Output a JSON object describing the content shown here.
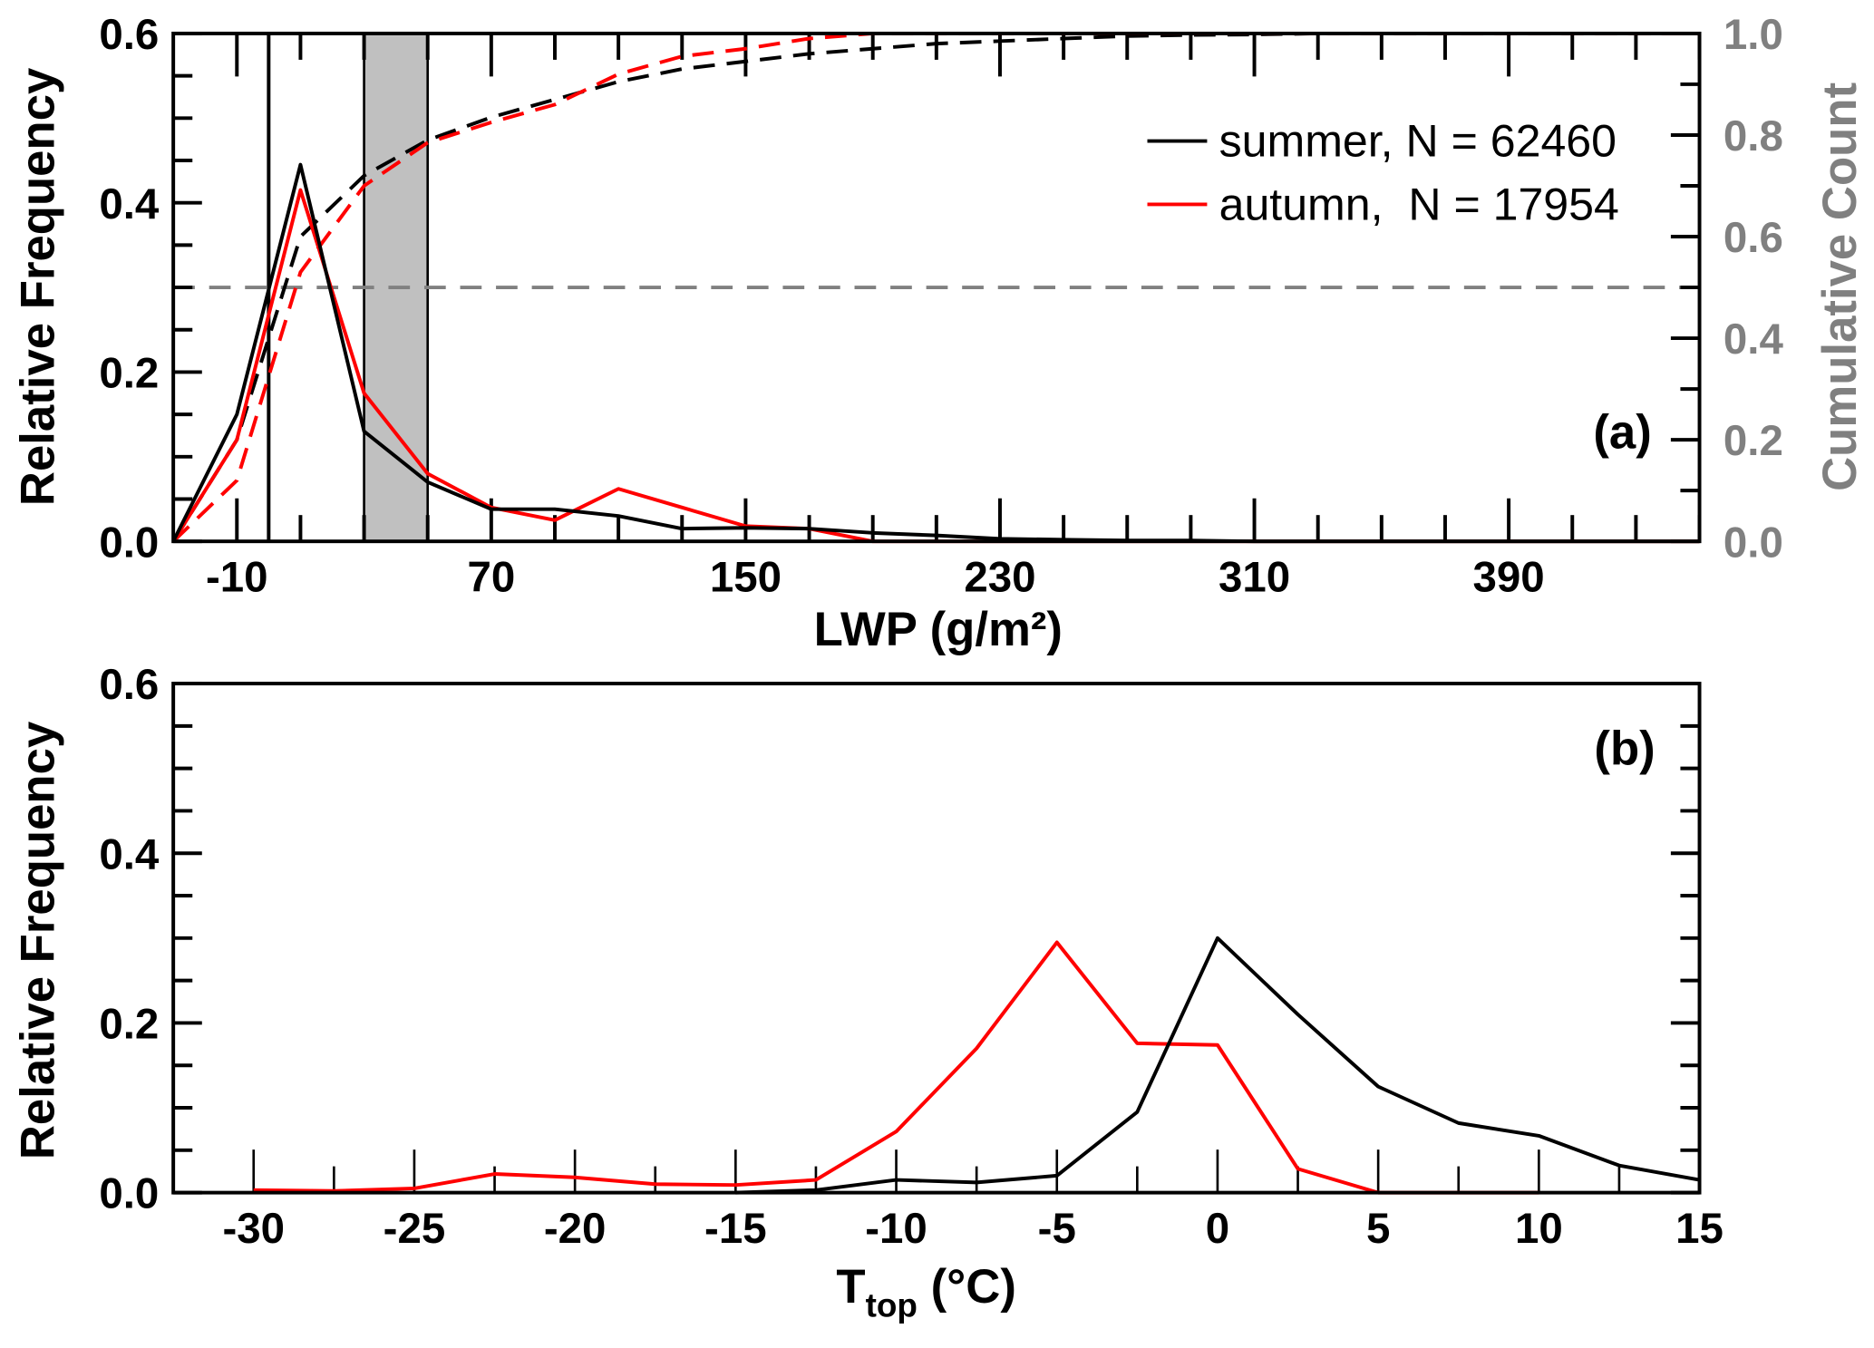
{
  "chart_data": [
    {
      "type": "line",
      "panel_label": "(a)",
      "xlabel": "LWP (g/m²)",
      "ylabel": "Relative Frequency",
      "y2label": "Cumulative Count",
      "xlim": [
        -30,
        450
      ],
      "ylim": [
        0,
        0.6
      ],
      "y2lim": [
        0,
        1.0
      ],
      "xticks": [
        "-10",
        "70",
        "150",
        "230",
        "310",
        "390"
      ],
      "yticks": [
        "0.0",
        "0.2",
        "0.4",
        "0.6"
      ],
      "y2ticks": [
        "0.0",
        "0.2",
        "0.4",
        "0.6",
        "0.8",
        "1.0"
      ],
      "legend": [
        "summer, N = 62460",
        "autumn,  N = 17954"
      ],
      "legend_position": "upper-right",
      "x": [
        -30,
        -10,
        10,
        30,
        50,
        70,
        90,
        110,
        130,
        150,
        170,
        190,
        210,
        230,
        250,
        270,
        290,
        310,
        330,
        350,
        370,
        390,
        410,
        430,
        450
      ],
      "series": [
        {
          "name": "summer",
          "color": "#000000",
          "values": [
            0,
            0.15,
            0.445,
            0.13,
            0.07,
            0.038,
            0.038,
            0.03,
            0.015,
            0.016,
            0.015,
            0.01,
            0.007,
            0.003,
            0.002,
            0.001,
            0.001,
            0,
            0,
            0,
            0,
            0,
            0,
            0,
            0
          ]
        },
        {
          "name": "autumn",
          "color": "#ff0000",
          "values": [
            0,
            0.12,
            0.415,
            0.175,
            0.08,
            0.04,
            0.025,
            0.062,
            0.04,
            0.018,
            0.015,
            0,
            0,
            0,
            0,
            0,
            0,
            0,
            0,
            0,
            0,
            0,
            0,
            0,
            0
          ]
        }
      ],
      "cumulative_series": [
        {
          "name": "summer cumulative",
          "color": "#000000",
          "values": [
            0,
            0.2,
            0.6,
            0.72,
            0.79,
            0.835,
            0.87,
            0.905,
            0.93,
            0.945,
            0.96,
            0.97,
            0.98,
            0.985,
            0.99,
            0.995,
            0.997,
            0.998,
            1,
            1,
            1,
            1,
            1,
            1,
            1
          ]
        },
        {
          "name": "autumn cumulative",
          "color": "#ff0000",
          "values": [
            0,
            0.12,
            0.53,
            0.7,
            0.785,
            0.825,
            0.86,
            0.92,
            0.955,
            0.97,
            0.99,
            1,
            1,
            1,
            1,
            1,
            1,
            1,
            1,
            1,
            1,
            1,
            1,
            1,
            1
          ]
        }
      ],
      "reference_lines": {
        "vertical": [
          0,
          30,
          50
        ],
        "shaded_range": [
          30,
          50
        ],
        "cumulative_horizontal": 0.5
      }
    },
    {
      "type": "line",
      "panel_label": "(b)",
      "xlabel_main": "T",
      "xlabel_sub": "top",
      "xlabel_unit": " (°C)",
      "ylabel": "Relative Frequency",
      "xlim": [
        -32.5,
        15
      ],
      "ylim": [
        0,
        0.6
      ],
      "xticks": [
        "-30",
        "-25",
        "-20",
        "-15",
        "-10",
        "-5",
        "0",
        "5",
        "10",
        "15"
      ],
      "yticks": [
        "0.0",
        "0.2",
        "0.4",
        "0.6"
      ],
      "x": [
        -30,
        -27.5,
        -25,
        -22.5,
        -20,
        -17.5,
        -15,
        -12.5,
        -10,
        -7.5,
        -5,
        -2.5,
        0,
        2.5,
        5,
        7.5,
        10,
        12.5,
        15
      ],
      "series": [
        {
          "name": "summer",
          "color": "#000000",
          "values": [
            null,
            null,
            null,
            null,
            null,
            null,
            0,
            0.003,
            0.015,
            0.012,
            0.02,
            0.095,
            0.3,
            0.21,
            0.125,
            0.082,
            0.067,
            0.032,
            0.015
          ]
        },
        {
          "name": "autumn",
          "color": "#ff0000",
          "values": [
            0.003,
            0.002,
            0.005,
            0.022,
            0.018,
            0.01,
            0.009,
            0.015,
            0.072,
            0.17,
            0.295,
            0.176,
            0.174,
            0.028,
            0,
            0,
            0,
            null,
            null
          ]
        }
      ]
    }
  ]
}
